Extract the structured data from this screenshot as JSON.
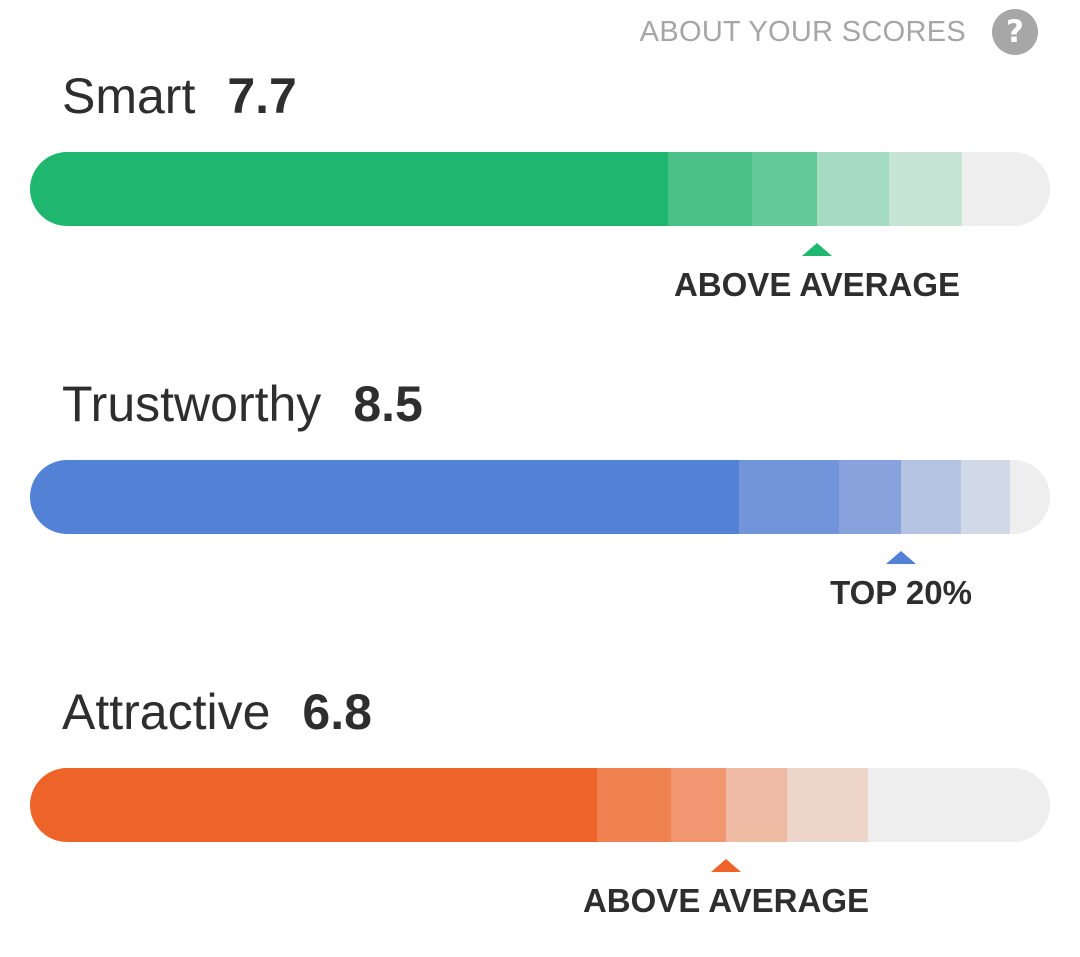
{
  "header": {
    "about_label": "ABOUT YOUR SCORES",
    "help_icon": "question-circle-icon",
    "help_glyph": "?"
  },
  "scores": [
    {
      "label": "Smart",
      "value": "7.7",
      "rank": "ABOVE AVERAGE",
      "colors": [
        "#1fb670",
        "#48c088",
        "#64ca99",
        "#a5dcc1",
        "#c7e5d5",
        "#eeeeee"
      ]
    },
    {
      "label": "Trustworthy",
      "value": "8.5",
      "rank": "TOP 20%",
      "colors": [
        "#5381d6",
        "#7194da",
        "#87a2dd",
        "#b5c4e3",
        "#d1d9e8",
        "#eeeeee"
      ]
    },
    {
      "label": "Attractive",
      "value": "6.8",
      "rank": "ABOVE AVERAGE",
      "colors": [
        "#ee6428",
        "#f08150",
        "#f19670",
        "#efbaa3",
        "#eed5ca",
        "#eeeeee"
      ]
    }
  ]
}
